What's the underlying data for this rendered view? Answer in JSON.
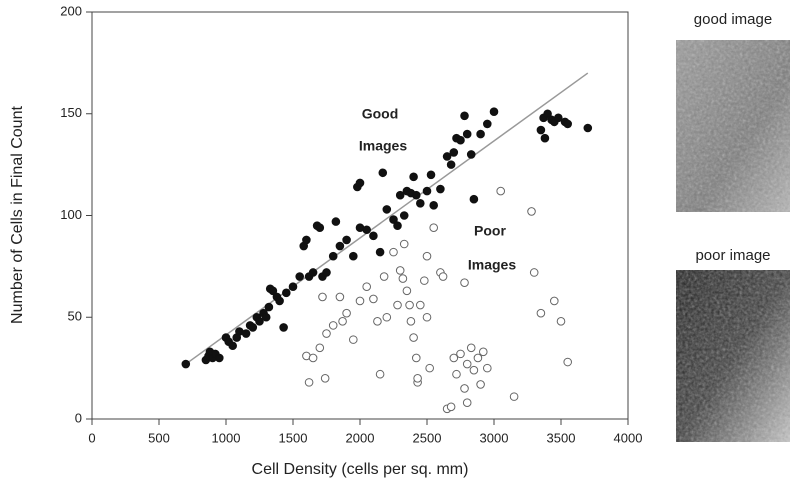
{
  "chart_data": {
    "type": "scatter",
    "xlabel": "Cell Density (cells per sq. mm)",
    "ylabel": "Number of Cells in Final Count",
    "xlim": [
      0,
      4000
    ],
    "xticks": [
      0,
      500,
      1000,
      1500,
      2000,
      2500,
      3000,
      3500,
      4000
    ],
    "ylim": [
      0,
      200
    ],
    "yticks": [
      0,
      50,
      100,
      150,
      200
    ],
    "annotations": [
      "Good",
      "Images",
      "Poor",
      "Images"
    ],
    "fit_line": {
      "x": [
        700,
        3700
      ],
      "y": [
        27,
        170
      ],
      "color": "#999999"
    },
    "series": [
      {
        "color": "#111111",
        "filled": true,
        "x": [
          700,
          850,
          870,
          880,
          900,
          920,
          950,
          1000,
          1020,
          1050,
          1080,
          1100,
          1150,
          1180,
          1200,
          1230,
          1250,
          1280,
          1300,
          1320,
          1330,
          1350,
          1380,
          1400,
          1430,
          1450,
          1500,
          1550,
          1580,
          1600,
          1620,
          1650,
          1680,
          1700,
          1720,
          1750,
          1800,
          1820,
          1850,
          1900,
          1950,
          1980,
          2000,
          2000,
          2050,
          2100,
          2150,
          2170,
          2200,
          2250,
          2280,
          2300,
          2330,
          2350,
          2380,
          2400,
          2420,
          2450,
          2500,
          2530,
          2550,
          2600,
          2650,
          2680,
          2700,
          2720,
          2750,
          2780,
          2800,
          2830,
          2850,
          2900,
          2950,
          3000,
          3350,
          3370,
          3400,
          3430,
          3450,
          3480,
          3530,
          3550,
          3700,
          3380
        ],
        "values": [
          27,
          29,
          31,
          33,
          30,
          32,
          30,
          40,
          38,
          36,
          40,
          43,
          42,
          46,
          45,
          50,
          48,
          52,
          50,
          55,
          64,
          63,
          60,
          58,
          45,
          62,
          65,
          70,
          85,
          88,
          70,
          72,
          95,
          94,
          70,
          72,
          80,
          97,
          85,
          88,
          80,
          114,
          116,
          94,
          93,
          90,
          82,
          121,
          103,
          98,
          95,
          110,
          100,
          112,
          111,
          119,
          110,
          106,
          112,
          120,
          105,
          113,
          129,
          125,
          131,
          138,
          137,
          149,
          140,
          130,
          108,
          140,
          145,
          151,
          142,
          148,
          150,
          147,
          146,
          148,
          146,
          145,
          143,
          138
        ]
      },
      {
        "color": "#666666",
        "filled": false,
        "x": [
          1600,
          1620,
          1650,
          1700,
          1720,
          1740,
          1750,
          1800,
          1850,
          1870,
          1900,
          1950,
          2000,
          2050,
          2100,
          2130,
          2150,
          2180,
          2200,
          2250,
          2280,
          2300,
          2320,
          2330,
          2350,
          2370,
          2380,
          2400,
          2420,
          2430,
          2450,
          2480,
          2500,
          2500,
          2520,
          2550,
          2600,
          2620,
          2650,
          2680,
          2700,
          2720,
          2750,
          2780,
          2800,
          2800,
          2830,
          2850,
          2880,
          2900,
          2920,
          2950,
          3050,
          3150,
          3280,
          3300,
          3350,
          3450,
          3500,
          3550,
          2780,
          2430
        ],
        "values": [
          31,
          18,
          30,
          35,
          60,
          20,
          42,
          46,
          60,
          48,
          52,
          39,
          58,
          65,
          59,
          48,
          22,
          70,
          50,
          82,
          56,
          73,
          69,
          86,
          63,
          56,
          48,
          40,
          30,
          18,
          56,
          68,
          50,
          80,
          25,
          94,
          72,
          70,
          5,
          6,
          30,
          22,
          32,
          15,
          8,
          27,
          35,
          24,
          30,
          17,
          33,
          25,
          112,
          11,
          102,
          72,
          52,
          58,
          48,
          28,
          67,
          20
        ]
      }
    ]
  },
  "panels": [
    {
      "label": "good image"
    },
    {
      "label": "poor image"
    }
  ]
}
